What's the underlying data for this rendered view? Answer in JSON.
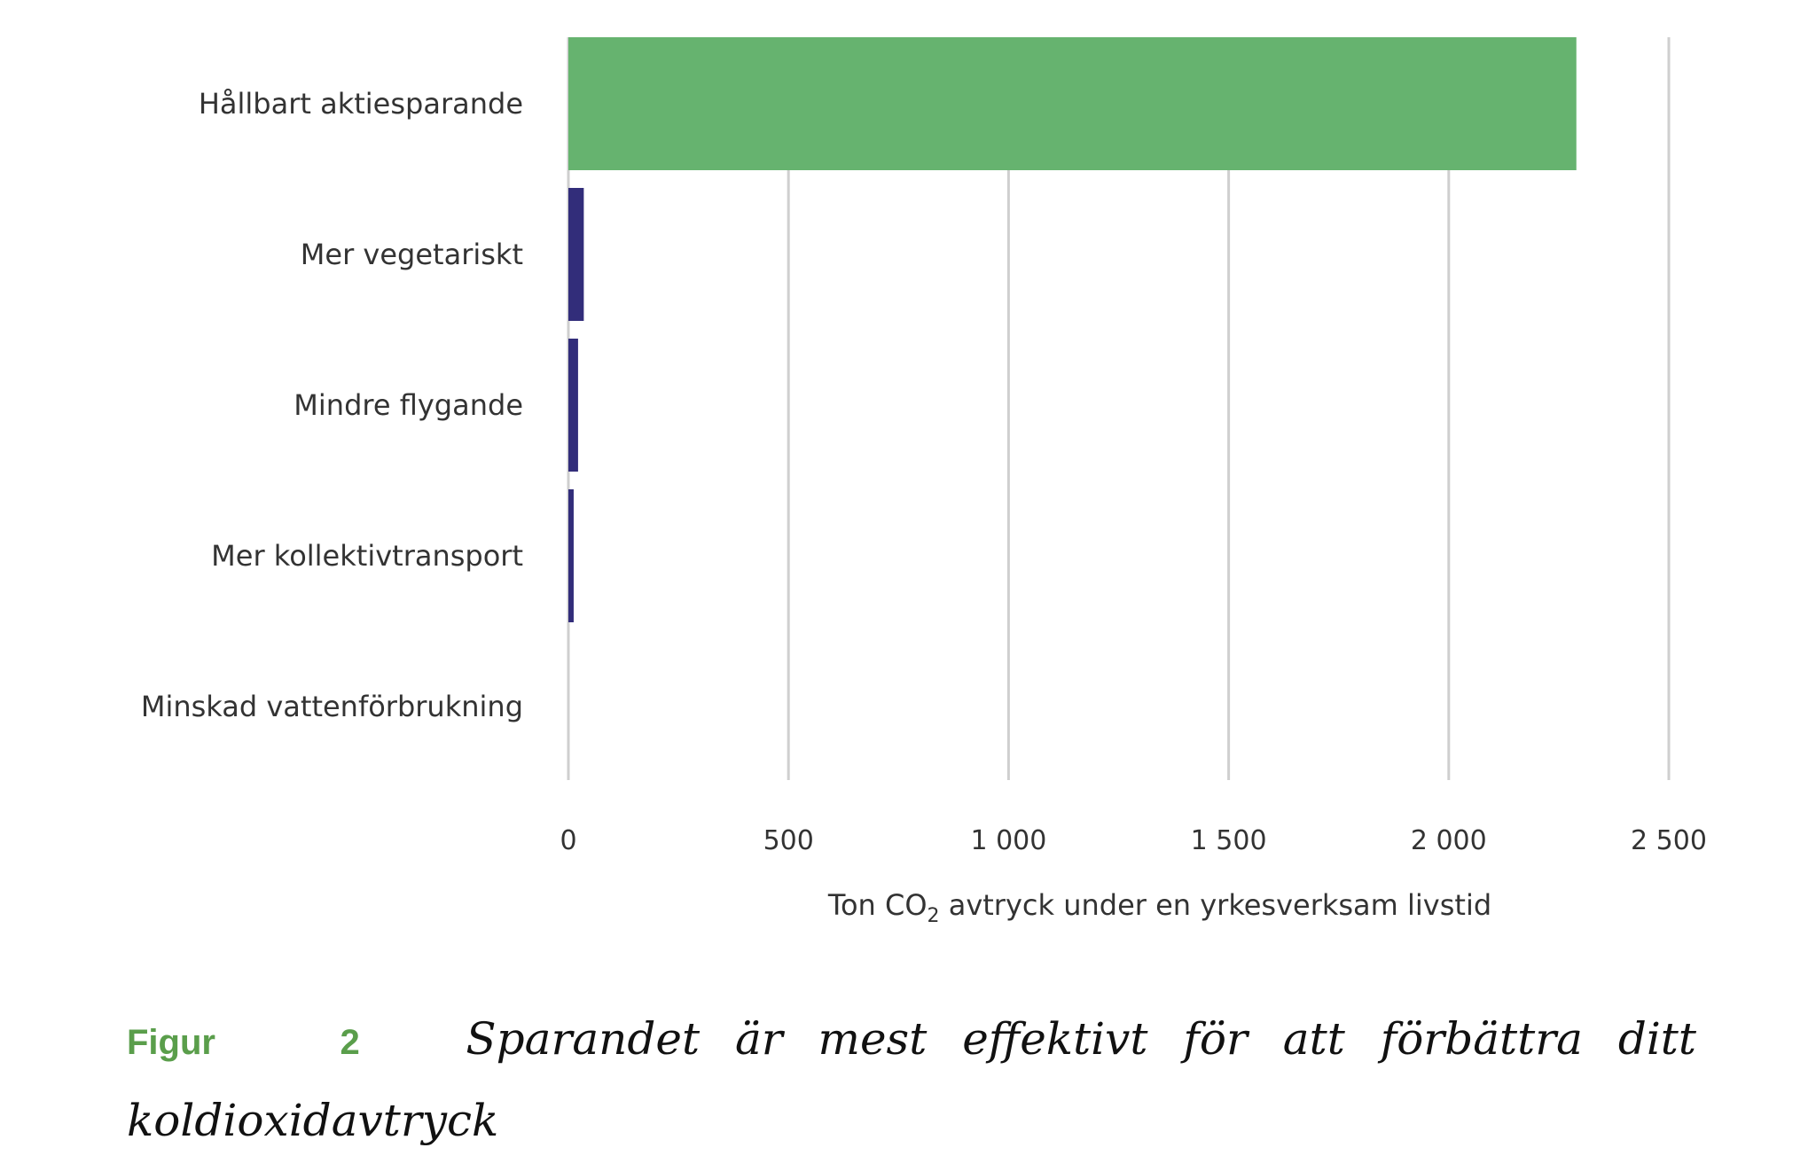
{
  "chart_data": {
    "type": "bar",
    "orientation": "horizontal",
    "categories": [
      "Hållbart aktiesparande",
      "Mer vegetariskt",
      "Mindre flygande",
      "Mer kollektivtransport",
      "Minskad vattenförbrukning"
    ],
    "values": [
      2290,
      35,
      22,
      12,
      0
    ],
    "bar_colors": [
      "#66b36f",
      "#322d7a",
      "#322d7a",
      "#322d7a",
      "#322d7a"
    ],
    "xlim": [
      0,
      2500
    ],
    "xticks": [
      0,
      500,
      1000,
      1500,
      2000,
      2500
    ],
    "xtick_labels": [
      "0",
      "500",
      "1 000",
      "1 500",
      "2 000",
      "2 500"
    ],
    "xlabel_parts": [
      "Ton CO",
      "2",
      " avtryck under en yrkesverksam livstid"
    ],
    "grid": true
  },
  "caption": {
    "prefix_word": "Figur",
    "prefix_number": "2",
    "prefix_color": "#5a9e4b",
    "text": "Sparandet är mest effektivt för att förbättra ditt koldioxidavtryck"
  }
}
